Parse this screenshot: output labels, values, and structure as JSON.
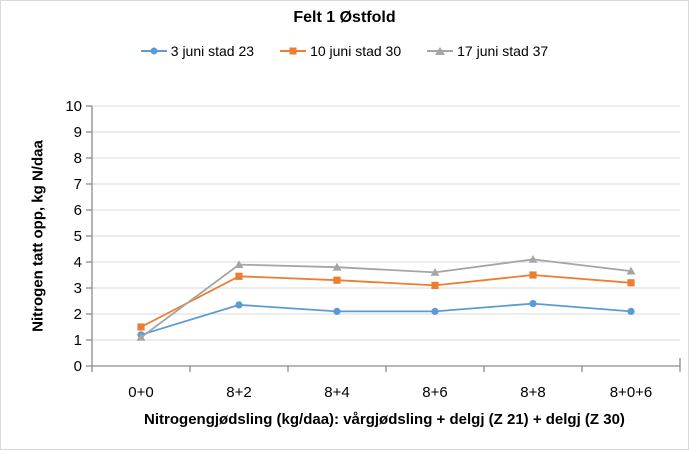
{
  "chart_data": {
    "type": "line",
    "title": "Felt 1 Østfold",
    "categories": [
      "0+0",
      "8+2",
      "8+4",
      "8+6",
      "8+8",
      "8+0+6"
    ],
    "series": [
      {
        "name": "3 juni stad 23",
        "color": "#5B9BD5",
        "marker": "circle",
        "values": [
          1.2,
          2.35,
          2.1,
          2.1,
          2.4,
          2.1
        ]
      },
      {
        "name": "10 juni stad 30",
        "color": "#ED7D31",
        "marker": "square",
        "values": [
          1.5,
          3.45,
          3.3,
          3.1,
          3.5,
          3.2
        ]
      },
      {
        "name": "17 juni stad 37",
        "color": "#A5A5A5",
        "marker": "triangle",
        "values": [
          1.1,
          3.9,
          3.8,
          3.6,
          4.1,
          3.65
        ]
      }
    ],
    "xlabel": "Nitrogengjødsling (kg/daa): vårgjødsling + delgj (Z 21) + delgj (Z 30)",
    "ylabel": "Nitrogen tatt opp, kg N/daa",
    "ylim": [
      0,
      10
    ],
    "ytick_step": 1,
    "grid": true,
    "legend_position": "top"
  },
  "colors": {
    "axis": "#8C8C8C",
    "gridline": "#D9D9D9",
    "text": "#000000",
    "frame_border": "#D9D9D9"
  }
}
